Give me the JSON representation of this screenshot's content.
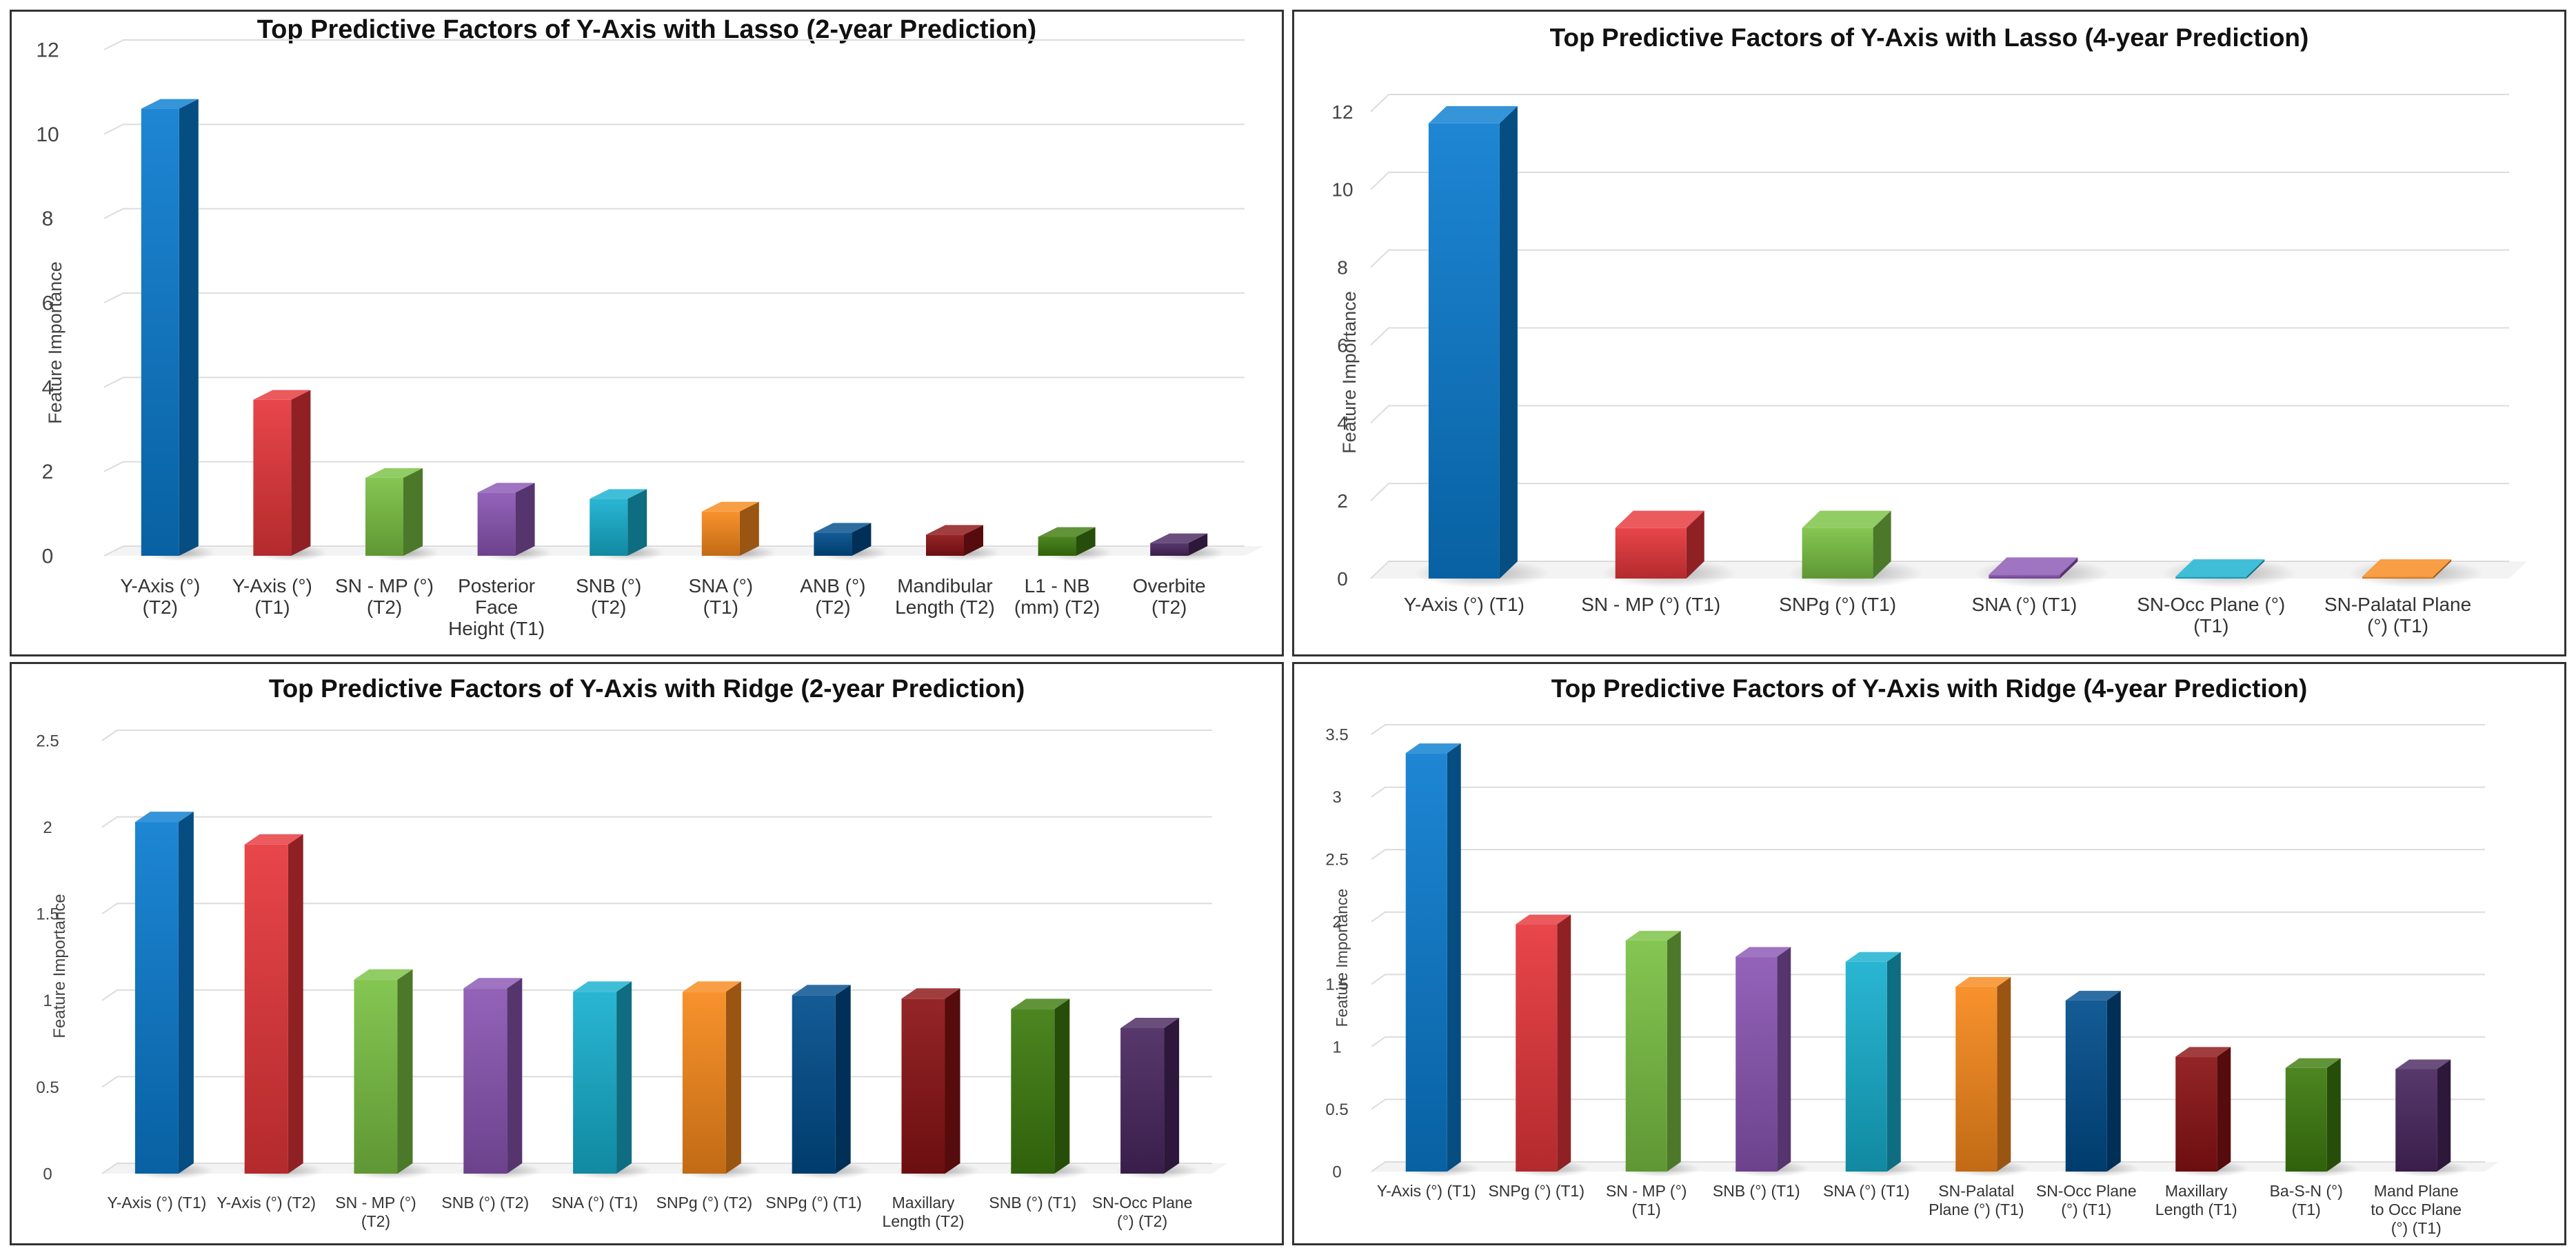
{
  "palette": [
    "#0a7cd0",
    "#e6363a",
    "#7ac143",
    "#8a55b3",
    "#16b0cf",
    "#f7891b",
    "#004d8c",
    "#8b1214",
    "#3e7c0e",
    "#49275f"
  ],
  "chart_data": [
    {
      "type": "bar",
      "title": "Top Predictive Factors of Y-Axis with Lasso (2-year Prediction)",
      "xlabel": "",
      "ylabel": "Feature Importance",
      "ylim": [
        0,
        12
      ],
      "yticks": [
        "0",
        "2",
        "4",
        "6",
        "8",
        "10",
        "12"
      ],
      "grid": true,
      "categories": [
        [
          "Y-Axis (°)",
          "(T2)"
        ],
        [
          "Y-Axis (°)",
          "(T1)"
        ],
        [
          "SN - MP (°)",
          "(T2)"
        ],
        [
          "Posterior",
          "Face",
          "Height (T1)"
        ],
        [
          "SNB (°)",
          "(T2)"
        ],
        [
          "SNA (°)",
          "(T1)"
        ],
        [
          "ANB (°)",
          "(T2)"
        ],
        [
          "Mandibular",
          "Length (T2)"
        ],
        [
          "L1 - NB",
          "(mm) (T2)"
        ],
        [
          "Overbite",
          "(T2)"
        ]
      ],
      "values": [
        10.6,
        3.7,
        1.85,
        1.5,
        1.35,
        1.05,
        0.55,
        0.5,
        0.45,
        0.3
      ]
    },
    {
      "type": "bar",
      "title": "Top Predictive Factors of Y-Axis with Lasso (4-year Prediction)",
      "xlabel": "",
      "ylabel": "Feature Importance",
      "ylim": [
        0,
        12
      ],
      "yticks": [
        "0",
        "2",
        "4",
        "6",
        "8",
        "10",
        "12"
      ],
      "grid": true,
      "categories": [
        [
          "Y-Axis (°) (T1)"
        ],
        [
          "SN - MP (°) (T1)"
        ],
        [
          "SNPg (°) (T1)"
        ],
        [
          "SNA (°) (T1)"
        ],
        [
          "SN-Occ Plane (°)",
          "(T1)"
        ],
        [
          "SN-Palatal Plane",
          "(°) (T1)"
        ]
      ],
      "values": [
        11.7,
        1.3,
        1.3,
        0.1,
        0.05,
        0.05
      ]
    },
    {
      "type": "bar",
      "title": "Top Predictive Factors of Y-Axis with Ridge (2-year Prediction)",
      "xlabel": "",
      "ylabel": "Feature Importance",
      "ylim": [
        0,
        2.5
      ],
      "yticks": [
        "0",
        "0.5",
        "1",
        "1.5",
        "2",
        "2.5"
      ],
      "grid": true,
      "categories": [
        [
          "Y-Axis (°) (T1)"
        ],
        [
          "Y-Axis (°) (T2)"
        ],
        [
          "SN - MP (°)",
          "(T2)"
        ],
        [
          "SNB (°) (T2)"
        ],
        [
          "SNA (°) (T1)"
        ],
        [
          "SNPg (°) (T2)"
        ],
        [
          "SNPg (°) (T1)"
        ],
        [
          "Maxillary",
          "Length (T2)"
        ],
        [
          "SNB (°) (T1)"
        ],
        [
          "SN-Occ Plane",
          "(°) (T2)"
        ]
      ],
      "values": [
        2.03,
        1.9,
        1.12,
        1.07,
        1.05,
        1.05,
        1.03,
        1.01,
        0.95,
        0.84
      ]
    },
    {
      "type": "bar",
      "title": "Top Predictive Factors of Y-Axis with Ridge (4-year Prediction)",
      "xlabel": "",
      "ylabel": "Feature Importance",
      "ylim": [
        0,
        3.5
      ],
      "yticks": [
        "0",
        "0.5",
        "1",
        "1.5",
        "2",
        "2.5",
        "3",
        "3.5"
      ],
      "grid": true,
      "categories": [
        [
          "Y-Axis (°) (T1)"
        ],
        [
          "SNPg (°) (T1)"
        ],
        [
          "SN - MP (°)",
          "(T1)"
        ],
        [
          "SNB (°) (T1)"
        ],
        [
          "SNA (°) (T1)"
        ],
        [
          "SN-Palatal",
          "Plane (°) (T1)"
        ],
        [
          "SN-Occ Plane",
          "(°) (T1)"
        ],
        [
          "Maxillary",
          "Length (T1)"
        ],
        [
          "Ba-S-N (°)",
          "(T1)"
        ],
        [
          "Mand Plane",
          "to Occ Plane",
          "(°) (T1)"
        ]
      ],
      "values": [
        3.35,
        1.98,
        1.85,
        1.72,
        1.68,
        1.48,
        1.37,
        0.92,
        0.83,
        0.82
      ]
    }
  ]
}
